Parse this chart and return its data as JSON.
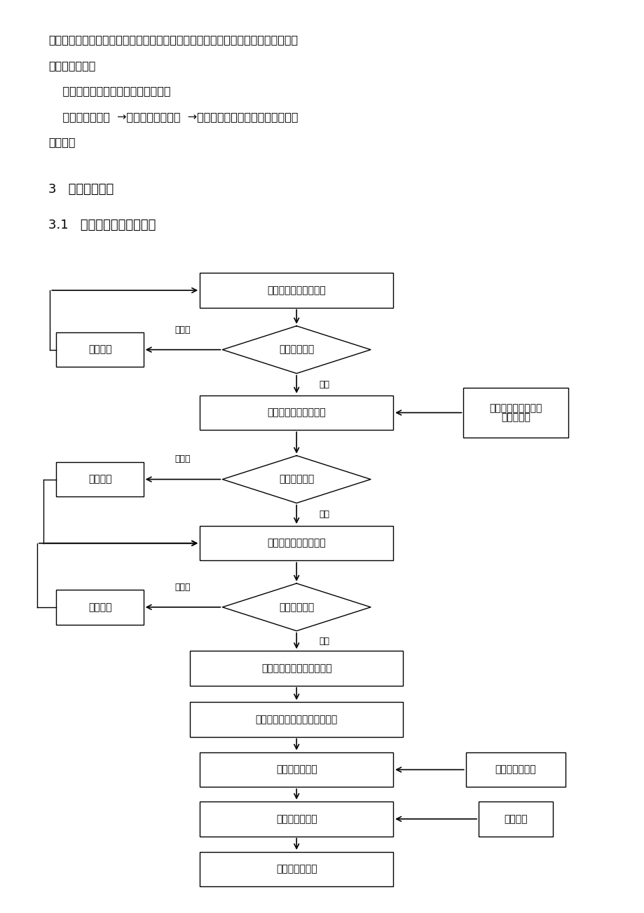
{
  "background_color": "#ffffff",
  "text_color": "#000000",
  "header_text_line1": "括钢筋、模板、砼和现浇构造四个分项工程每个分项工程应按楼层和伸缩缝划分成假",
  "header_text_line2": "设干个检验批。",
  "header_text_line3": "    子分部工程验收应遵循以下原那么：",
  "header_text_line4": "    检验批验收合格  →分项工程验收合格  →子分部工程验收（包括构造实体质",
  "header_text_line5": "量检测）",
  "section_title1": "3   监理工作流程",
  "section_title2": "3.1   监理质量控制工作流程",
  "node_start": "施工轴线标高自检合格",
  "node_d1": "验收轴线标高",
  "node_fix1": "施工整改",
  "node_rect2": "施工钢筋工程自检合格",
  "node_side1_l1": "梁柱节点钢筋隐蔽过",
  "node_side1_l2": "程旁站监理",
  "node_d2": "钢筋工程隐蔽",
  "node_fix2": "施工整改",
  "node_rect3": "施工模板工程自检合格",
  "node_d3": "模板工程验收",
  "node_fix3": "施工整改",
  "node_rect4": "施工检查浇筑前的准备工作",
  "node_rect5": "总监或总监代表签署混凝土浇筑",
  "node_rect6": "施工浇筑混凝土",
  "node_side2": "全过程旁站监理",
  "node_rect7": "施工混凝土养护",
  "node_side3": "监理巡查",
  "node_rect8": "砼现浇构造验收",
  "label_qualified": "合格",
  "label_unqualified": "不合格",
  "font_size_body": 11.5,
  "font_size_section": 13,
  "font_size_node": 10,
  "font_size_label": 9
}
